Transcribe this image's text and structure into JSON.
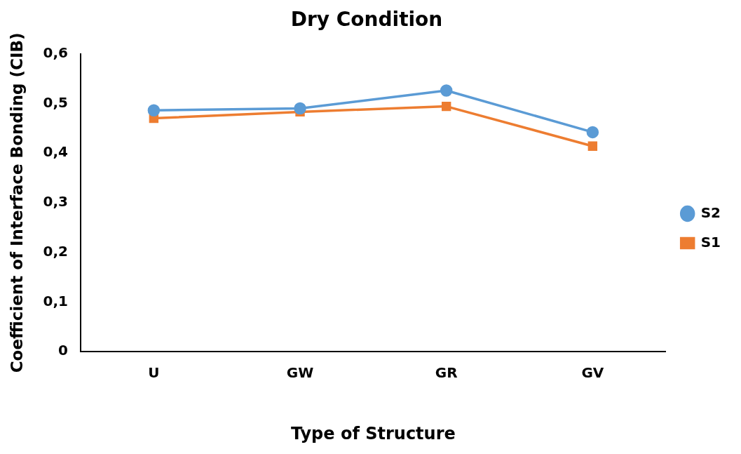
{
  "chart_data": {
    "type": "line",
    "title": "Dry Condition",
    "xlabel": "Type of Structure",
    "ylabel": "Coefficient of Interface Bonding (CIB)",
    "categories": [
      "U",
      "GW",
      "GR",
      "GV"
    ],
    "series": [
      {
        "name": "S1",
        "color": "#ed7d31",
        "marker": "square",
        "values": [
          0.47,
          0.483,
          0.494,
          0.414
        ]
      },
      {
        "name": "S2",
        "color": "#5b9bd5",
        "marker": "circle",
        "values": [
          0.486,
          0.49,
          0.526,
          0.442
        ]
      }
    ],
    "ylim": [
      0,
      0.6
    ],
    "yticks": [
      0,
      {
        "value": 0.1,
        "label": "0,1"
      },
      {
        "value": 0.2,
        "label": "0,2"
      },
      {
        "value": 0.3,
        "label": "0,3"
      },
      {
        "value": 0.4,
        "label": "0,4"
      },
      {
        "value": 0.5,
        "label": "0,5"
      },
      {
        "value": 0.6,
        "label": "0,6"
      }
    ],
    "grid": false,
    "legend": "right",
    "line_style": "solid"
  }
}
